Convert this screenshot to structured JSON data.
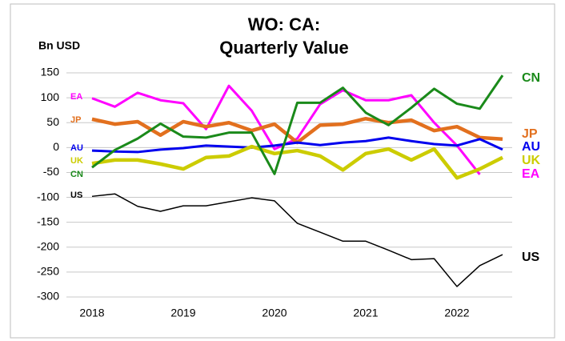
{
  "chart_data": {
    "type": "line",
    "title": [
      "WO: CA:",
      "Quarterly Value"
    ],
    "y_label": "Bn USD",
    "categories": [
      "2018",
      null,
      null,
      null,
      "2019",
      null,
      null,
      null,
      "2020",
      null,
      null,
      null,
      "2021",
      null,
      null,
      null,
      "2022",
      null,
      null
    ],
    "ylim": [
      -300,
      150
    ],
    "yticks": [
      -300,
      -250,
      -200,
      -150,
      -100,
      -50,
      0,
      50,
      100,
      150
    ],
    "grid": true,
    "series": [
      {
        "name": "US",
        "color": "#000000",
        "values": [
          -98,
          -93,
          -118,
          -128,
          -117,
          -117,
          -109,
          -101,
          -107,
          -152,
          -170,
          -188,
          -188,
          -206,
          -225,
          -223,
          -279,
          -237,
          -215
        ]
      },
      {
        "name": "EA",
        "color": "#ff00ff",
        "values": [
          99,
          82,
          110,
          95,
          89,
          37,
          124,
          74,
          -3,
          18,
          87,
          115,
          95,
          95,
          105,
          50,
          4,
          -54,
          null
        ]
      },
      {
        "name": "JP",
        "color": "#e2701e",
        "values": [
          57,
          47,
          52,
          25,
          52,
          42,
          50,
          34,
          47,
          10,
          45,
          47,
          58,
          50,
          55,
          34,
          42,
          20,
          17
        ]
      },
      {
        "name": "AU",
        "color": "#0000ee",
        "values": [
          -6,
          -8,
          -9,
          -4,
          -1,
          4,
          2,
          0,
          4,
          10,
          5,
          10,
          13,
          20,
          13,
          7,
          4,
          17,
          -4
        ]
      },
      {
        "name": "UK",
        "color": "#cccc00",
        "values": [
          -32,
          -25,
          -25,
          -33,
          -43,
          -20,
          -17,
          2,
          -12,
          -6,
          -17,
          -45,
          -12,
          -3,
          -25,
          -3,
          -61,
          -43,
          -20
        ]
      },
      {
        "name": "CN",
        "color": "#1a8a1a",
        "values": [
          -40,
          -5,
          18,
          48,
          22,
          20,
          30,
          30,
          -53,
          90,
          90,
          120,
          70,
          45,
          80,
          118,
          88,
          78,
          145
        ]
      }
    ]
  }
}
